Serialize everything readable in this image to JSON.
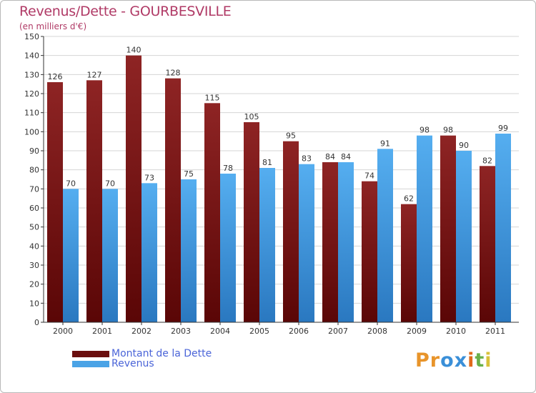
{
  "header": {
    "title": "Revenus/Dette - GOURBESVILLE",
    "subtitle": "(en milliers d'€)"
  },
  "chart_data": {
    "type": "bar",
    "title": "Revenus/Dette - GOURBESVILLE",
    "subtitle": "(en milliers d'€)",
    "categories": [
      "2000",
      "2001",
      "2002",
      "2003",
      "2004",
      "2005",
      "2006",
      "2007",
      "2008",
      "2009",
      "2010",
      "2011"
    ],
    "series": [
      {
        "name": "Montant de la Dette",
        "color": "#8e1a1a",
        "values": [
          126,
          127,
          140,
          128,
          115,
          105,
          95,
          84,
          74,
          62,
          98,
          82
        ]
      },
      {
        "name": "Revenus",
        "color": "#4aa3e6",
        "values": [
          70,
          70,
          73,
          75,
          78,
          81,
          83,
          84,
          91,
          98,
          90,
          99
        ]
      }
    ],
    "ylim": [
      0,
      150
    ],
    "yticks": [
      "0",
      "10",
      "20",
      "30",
      "40",
      "50",
      "60",
      "70",
      "80",
      "90",
      "100",
      "110",
      "120",
      "130",
      "140",
      "150"
    ],
    "grid": true,
    "legend_position": "bottom-left"
  },
  "legend": {
    "items": [
      {
        "label": "Montant de la Dette",
        "color": "#6a0e0e"
      },
      {
        "label": "Revenus",
        "color": "#4aa3e6"
      }
    ]
  },
  "logo": {
    "letters": [
      "P",
      "r",
      "o",
      "x",
      "i",
      "t",
      "i"
    ],
    "colors": [
      "#e8942a",
      "#e8942a",
      "#3a8fd8",
      "#3a8fd8",
      "#e06a1a",
      "#6ab04a",
      "#d8c23a"
    ]
  }
}
